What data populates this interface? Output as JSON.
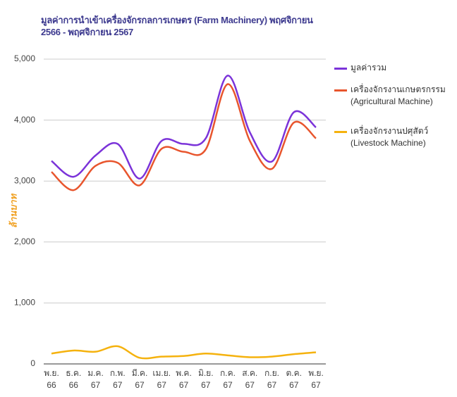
{
  "chart_data": {
    "type": "line",
    "title": "มูลค่าการนำเข้าเครื่องจักรกลการเกษตร (Farm Machinery) พฤศจิกายน 2566 - พฤศจิกายน 2567",
    "y_label": "ล้านบาท",
    "categories": [
      "พ.ย. 66",
      "ธ.ค. 66",
      "ม.ค. 67",
      "ก.พ. 67",
      "มี.ค. 67",
      "เม.ย. 67",
      "พ.ค. 67",
      "มิ.ย. 67",
      "ก.ค. 67",
      "ส.ค. 67",
      "ก.ย. 67",
      "ต.ค. 67",
      "พ.ย. 67"
    ],
    "series": [
      {
        "name": "มูลค่ารวม",
        "color": "#7b33d9",
        "values": [
          3330,
          3070,
          3420,
          3610,
          3040,
          3660,
          3610,
          3700,
          4730,
          3800,
          3320,
          4130,
          3880
        ]
      },
      {
        "name": "เครื่องจักรงานเกษตรกรรม (Agricultural Machine)",
        "color": "#e8552d",
        "values": [
          3150,
          2850,
          3250,
          3300,
          2930,
          3530,
          3480,
          3520,
          4590,
          3660,
          3200,
          3960,
          3700
        ]
      },
      {
        "name": "เครื่องจักรงานปศุสัตว์ (Livestock Machine)",
        "color": "#f5b20e",
        "values": [
          170,
          220,
          200,
          290,
          100,
          120,
          130,
          170,
          140,
          110,
          120,
          160,
          190
        ]
      }
    ],
    "ylim": [
      0,
      5000
    ],
    "yticks": [
      0,
      {
        "value": 1000,
        "label": "1,000"
      },
      {
        "value": 2000,
        "label": "2,000"
      },
      {
        "value": 3000,
        "label": "3,000"
      },
      {
        "value": 4000,
        "label": "4,000"
      },
      {
        "value": 5000,
        "label": "5,000"
      }
    ],
    "grid": true,
    "smooth": true,
    "legend": "right"
  }
}
